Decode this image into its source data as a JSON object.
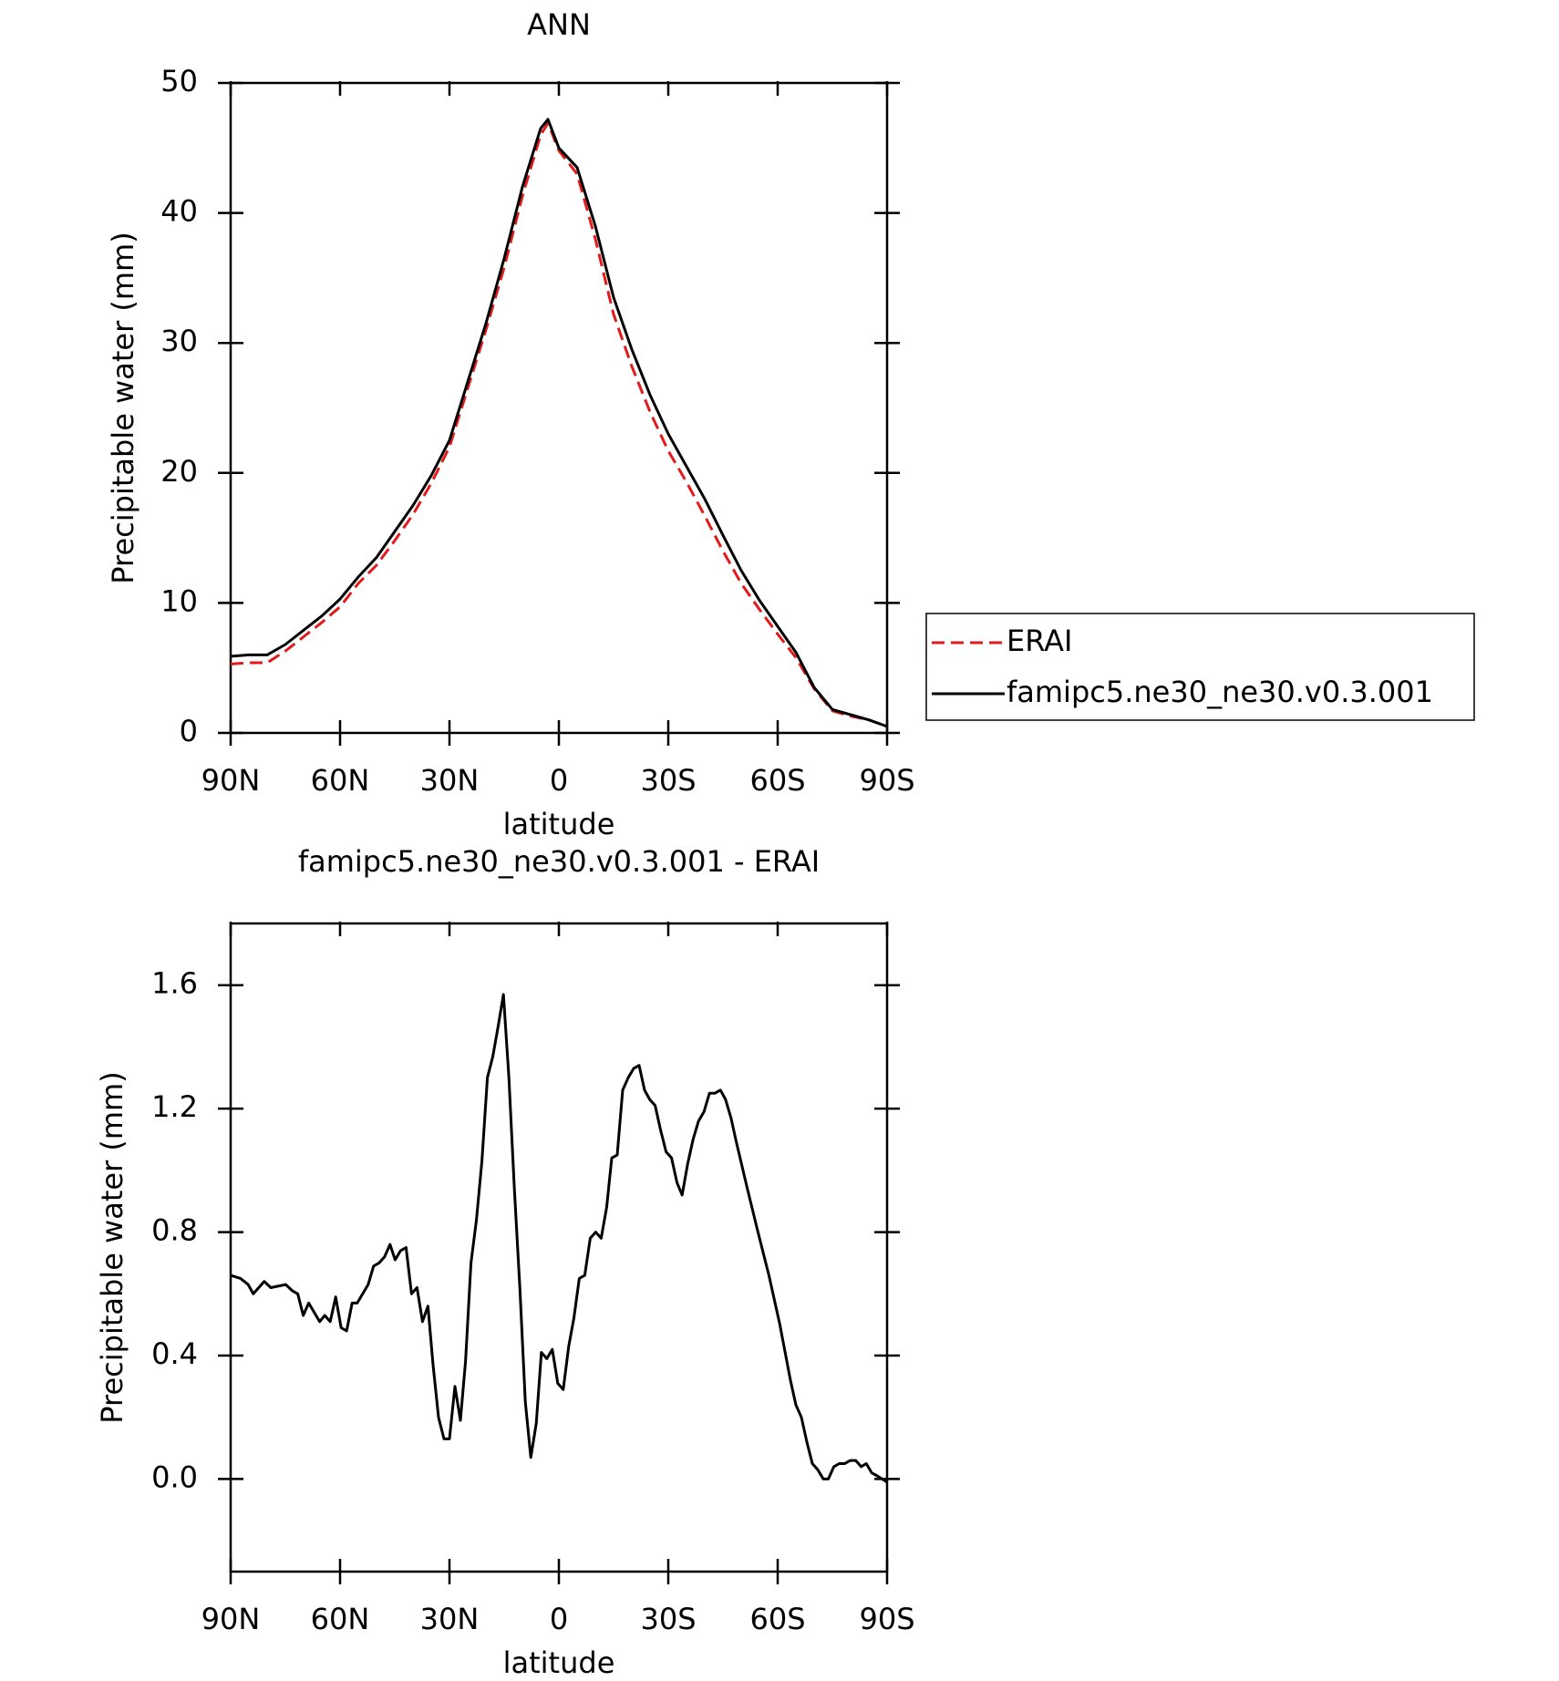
{
  "chart_data": [
    {
      "type": "line",
      "title": "ANN",
      "x_label": "latitude",
      "y_label": "Precipitable water (mm)",
      "x": [
        90,
        85,
        80,
        75,
        70,
        65,
        60,
        55,
        50,
        45,
        40,
        35,
        30,
        25,
        20,
        15,
        10,
        5,
        3,
        0,
        -5,
        -10,
        -15,
        -20,
        -25,
        -30,
        -35,
        -40,
        -45,
        -50,
        -55,
        -60,
        -65,
        -70,
        -75,
        -80,
        -85,
        -90
      ],
      "series": [
        {
          "name": "ERAI",
          "color": "#e31a1c",
          "style": "dashed",
          "values": [
            5.3,
            5.4,
            5.4,
            6.3,
            7.4,
            8.5,
            9.7,
            11.5,
            12.9,
            14.8,
            16.8,
            19.2,
            22.0,
            26.5,
            31.0,
            35.8,
            41.3,
            46.0,
            46.9,
            44.8,
            43.0,
            38.0,
            32.2,
            28.2,
            24.7,
            21.7,
            19.3,
            16.7,
            14.0,
            11.5,
            9.5,
            7.6,
            5.8,
            3.4,
            1.7,
            1.3,
            1.0,
            0.5
          ]
        },
        {
          "name": "famipc5.ne30_ne30.v0.3.001",
          "color": "#000000",
          "style": "solid",
          "values": [
            5.9,
            6.0,
            6.0,
            6.8,
            7.9,
            9.0,
            10.3,
            12.0,
            13.5,
            15.5,
            17.5,
            19.8,
            22.5,
            27.0,
            31.5,
            36.5,
            42,
            46.5,
            47.2,
            45,
            43.5,
            39,
            33.5,
            29.5,
            26,
            23,
            20.5,
            18,
            15.2,
            12.5,
            10.2,
            8.2,
            6.2,
            3.5,
            1.8,
            1.4,
            1.0,
            0.5
          ]
        }
      ],
      "xlim": [
        90,
        -90
      ],
      "xticks": [
        {
          "value": 90,
          "label": "90N"
        },
        {
          "value": 60,
          "label": "60N"
        },
        {
          "value": 30,
          "label": "30N"
        },
        0,
        {
          "value": -30,
          "label": "30S"
        },
        {
          "value": -60,
          "label": "60S"
        },
        {
          "value": -90,
          "label": "90S"
        }
      ],
      "ylim": [
        0,
        50
      ],
      "yticks": [
        0,
        10,
        20,
        30,
        40,
        50
      ],
      "legend": "right"
    },
    {
      "type": "line",
      "title": "famipc5.ne30_ne30.v0.3.001 - ERAI",
      "x_label": "latitude",
      "y_label": "Precipitable water (mm)",
      "x": [
        90,
        87.3,
        85.2,
        83.8,
        80.8,
        79.0,
        74.9,
        73.1,
        71.6,
        70.1,
        68.6,
        65.6,
        64.2,
        62.7,
        61.2,
        59.7,
        58.2,
        56.7,
        55.3,
        52.3,
        50.8,
        49.3,
        47.8,
        46.3,
        44.9,
        43.4,
        41.9,
        40.4,
        38.9,
        37.4,
        35.9,
        34.5,
        33.0,
        31.5,
        30.0,
        28.5,
        27.0,
        25.6,
        24.1,
        22.6,
        21.1,
        19.6,
        18.1,
        16.6,
        15.2,
        13.7,
        12.2,
        10.7,
        9.2,
        7.7,
        6.2,
        4.8,
        3.3,
        1.8,
        0.3,
        -1.2,
        -2.7,
        -4.1,
        -5.6,
        -7.1,
        -8.6,
        -10.1,
        -11.6,
        -13.1,
        -14.5,
        -16.0,
        -17.5,
        -19.0,
        -20.5,
        -22.0,
        -23.5,
        -24.9,
        -26.4,
        -27.9,
        -29.4,
        -30.9,
        -32.4,
        -33.8,
        -35.3,
        -36.8,
        -38.3,
        -39.8,
        -41.3,
        -42.8,
        -44.3,
        -45.7,
        -47.2,
        -48.7,
        -51.7,
        -54.6,
        -57.6,
        -60.6,
        -63.5,
        -65.0,
        -66.5,
        -68.0,
        -69.5,
        -71.0,
        -72.5,
        -73.9,
        -75.4,
        -76.9,
        -78.4,
        -79.9,
        -81.4,
        -82.9,
        -84.3,
        -85.8,
        -87.3,
        -90
      ],
      "series": [
        {
          "color": "#000000",
          "style": "solid",
          "values": [
            0.66,
            0.65,
            0.63,
            0.6,
            0.64,
            0.62,
            0.63,
            0.61,
            0.6,
            0.53,
            0.57,
            0.51,
            0.53,
            0.51,
            0.59,
            0.49,
            0.48,
            0.57,
            0.57,
            0.63,
            0.69,
            0.7,
            0.72,
            0.76,
            0.71,
            0.74,
            0.75,
            0.6,
            0.62,
            0.51,
            0.56,
            0.37,
            0.2,
            0.13,
            0.13,
            0.3,
            0.19,
            0.38,
            0.7,
            0.84,
            1.03,
            1.3,
            1.37,
            1.47,
            1.57,
            1.3,
            0.94,
            0.62,
            0.25,
            0.07,
            0.18,
            0.41,
            0.39,
            0.42,
            0.31,
            0.29,
            0.43,
            0.52,
            0.65,
            0.66,
            0.78,
            0.8,
            0.78,
            0.88,
            1.04,
            1.05,
            1.26,
            1.3,
            1.33,
            1.34,
            1.26,
            1.23,
            1.21,
            1.13,
            1.06,
            1.04,
            0.96,
            0.92,
            1.02,
            1.1,
            1.16,
            1.19,
            1.25,
            1.25,
            1.26,
            1.23,
            1.17,
            1.09,
            0.94,
            0.8,
            0.66,
            0.5,
            0.32,
            0.24,
            0.2,
            0.12,
            0.05,
            0.03,
            0.0,
            0.0,
            0.04,
            0.05,
            0.05,
            0.06,
            0.06,
            0.04,
            0.05,
            0.02,
            0.01,
            -0.01
          ]
        }
      ],
      "xlim": [
        90,
        -90
      ],
      "xticks": [
        {
          "value": 90,
          "label": "90N"
        },
        {
          "value": 60,
          "label": "60N"
        },
        {
          "value": 30,
          "label": "30N"
        },
        0,
        {
          "value": -30,
          "label": "30S"
        },
        {
          "value": -60,
          "label": "60S"
        },
        {
          "value": -90,
          "label": "90S"
        }
      ],
      "ylim": [
        -0.3,
        1.8
      ],
      "yticks": [
        {
          "value": 0,
          "label": "0.0"
        },
        0.4,
        0.8,
        1.2,
        1.6
      ]
    }
  ]
}
